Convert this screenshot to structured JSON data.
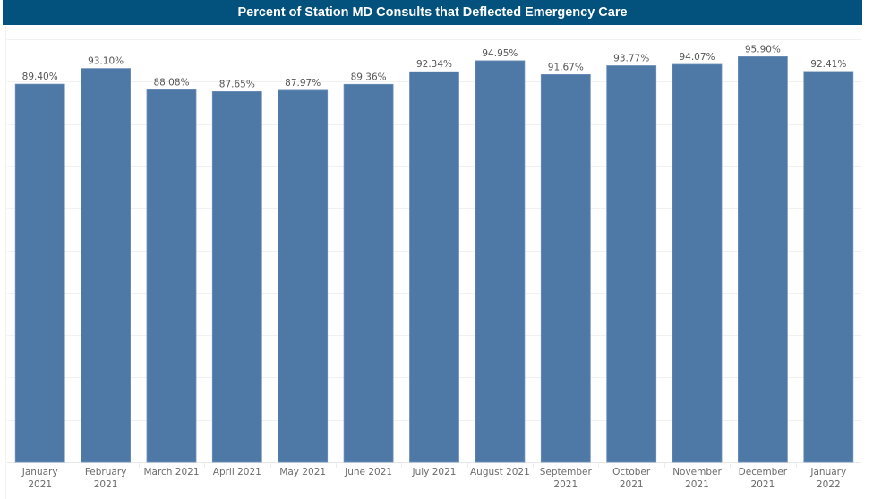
{
  "chart_data": {
    "type": "bar",
    "title": "Percent of Station MD Consults that Deflected Emergency Care",
    "xlabel": "",
    "ylabel": "",
    "ylim": [
      0,
      100
    ],
    "grid": true,
    "categories": [
      [
        "January",
        "2021"
      ],
      [
        "February",
        "2021"
      ],
      [
        "March 2021"
      ],
      [
        "April 2021"
      ],
      [
        "May 2021"
      ],
      [
        "June 2021"
      ],
      [
        "July 2021"
      ],
      [
        "August 2021"
      ],
      [
        "September",
        "2021"
      ],
      [
        "October",
        "2021"
      ],
      [
        "November",
        "2021"
      ],
      [
        "December",
        "2021"
      ],
      [
        "January",
        "2022"
      ]
    ],
    "values": [
      89.4,
      93.1,
      88.08,
      87.65,
      87.97,
      89.36,
      92.34,
      94.95,
      91.67,
      93.77,
      94.07,
      95.9,
      92.41
    ],
    "data_labels": [
      "89.40%",
      "93.10%",
      "88.08%",
      "87.65%",
      "87.97%",
      "89.36%",
      "92.34%",
      "94.95%",
      "91.67%",
      "93.77%",
      "94.07%",
      "95.90%",
      "92.41%"
    ],
    "colors": {
      "bar": "#4e79a7",
      "title_bg": "#03517d",
      "title_text": "#ffffff"
    }
  }
}
